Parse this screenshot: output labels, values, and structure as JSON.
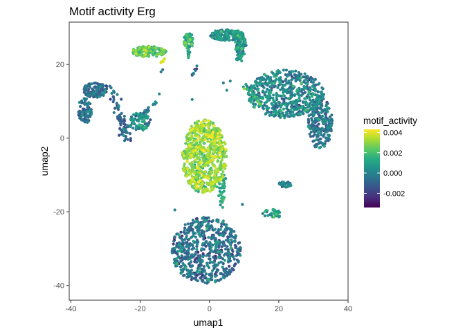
{
  "chart_data": {
    "type": "scatter",
    "title": "Motif activity Erg",
    "xlabel": "umap1",
    "ylabel": "umap2",
    "xlim": [
      -40.5,
      40
    ],
    "ylim": [
      -44,
      31.5
    ],
    "xticks": [
      -40,
      -20,
      0,
      20,
      40
    ],
    "yticks": [
      -40,
      -20,
      0,
      20
    ],
    "grid": false,
    "panel_border": true,
    "legend": {
      "title": "motif_activity",
      "position": "right",
      "colormap": "viridis",
      "range": [
        -0.0034,
        0.0043
      ],
      "ticks": [
        -0.002,
        0.0,
        0.002,
        0.004
      ],
      "tick_labels": [
        "-0.002",
        "0.000",
        "0.002",
        "0.004"
      ]
    },
    "clusters": [
      {
        "cx": -1.5,
        "cy": -5,
        "rx": 6.5,
        "ry": 10,
        "n": 700,
        "value_mean": 0.0028,
        "value_sd": 0.0007
      },
      {
        "cx": -1,
        "cy": -30.5,
        "rx": 10,
        "ry": 9,
        "n": 650,
        "value_mean": -0.0008,
        "value_sd": 0.0009
      },
      {
        "cx": 22,
        "cy": 12,
        "rx": 11,
        "ry": 6.5,
        "n": 550,
        "value_mean": 0.0,
        "value_sd": 0.0008
      },
      {
        "cx": 32,
        "cy": 4,
        "rx": 3.5,
        "ry": 7,
        "n": 220,
        "value_mean": -0.0006,
        "value_sd": 0.0008
      },
      {
        "cx": 5,
        "cy": 28,
        "rx": 5,
        "ry": 1.5,
        "n": 150,
        "value_mean": 0.0002,
        "value_sd": 0.0008
      },
      {
        "cx": 9,
        "cy": 25,
        "rx": 1.6,
        "ry": 3.5,
        "n": 70,
        "value_mean": 0.0002,
        "value_sd": 0.0008
      },
      {
        "cx": -6,
        "cy": 26.5,
        "rx": 1.5,
        "ry": 2,
        "n": 50,
        "value_mean": 0.0012,
        "value_sd": 0.0008
      },
      {
        "cx": -17.5,
        "cy": 23.5,
        "rx": 5,
        "ry": 1.5,
        "n": 130,
        "value_mean": 0.002,
        "value_sd": 0.0007
      },
      {
        "cx": -36,
        "cy": 7.5,
        "rx": 2,
        "ry": 3.5,
        "n": 90,
        "value_mean": -0.001,
        "value_sd": 0.0007
      },
      {
        "cx": -33,
        "cy": 13,
        "rx": 3.5,
        "ry": 2,
        "n": 120,
        "value_mean": -0.001,
        "value_sd": 0.0007
      },
      {
        "cx": -20,
        "cy": 4.5,
        "rx": 3,
        "ry": 2.5,
        "n": 80,
        "value_mean": 0.0002,
        "value_sd": 0.0008
      },
      {
        "cx": 22,
        "cy": -12.5,
        "rx": 2,
        "ry": 0.8,
        "n": 30,
        "value_mean": -0.0004,
        "value_sd": 0.0008
      },
      {
        "cx": 18,
        "cy": -20.5,
        "rx": 3,
        "ry": 1.2,
        "n": 40,
        "value_mean": 0.0008,
        "value_sd": 0.0008
      }
    ],
    "strands": [
      {
        "from": [
          -29,
          14
        ],
        "to": [
          -23,
          -1
        ],
        "spread": 1.2,
        "n": 60,
        "value_mean": -0.001,
        "value_sd": 0.0007
      },
      {
        "from": [
          -26,
          1
        ],
        "to": [
          -15,
          10
        ],
        "spread": 0.8,
        "n": 45,
        "value_mean": -0.0005,
        "value_sd": 0.0007
      },
      {
        "from": [
          4,
          -10
        ],
        "to": [
          3.5,
          -18
        ],
        "spread": 0.8,
        "n": 40,
        "value_mean": 0.001,
        "value_sd": 0.0007
      },
      {
        "from": [
          9,
          27
        ],
        "to": [
          8.5,
          21
        ],
        "spread": 0.8,
        "n": 35,
        "value_mean": 0.0003,
        "value_sd": 0.0008
      },
      {
        "from": [
          -6,
          22
        ],
        "to": [
          -6,
          25
        ],
        "spread": 0.6,
        "n": 15,
        "value_mean": 0.0008,
        "value_sd": 0.0008
      },
      {
        "from": [
          -5,
          17
        ],
        "to": [
          -3.5,
          19.5
        ],
        "spread": 0.4,
        "n": 8,
        "value_mean": -0.0005,
        "value_sd": 0.0008
      },
      {
        "from": [
          10,
          14
        ],
        "to": [
          15,
          9
        ],
        "spread": 0.8,
        "n": 30,
        "value_mean": 0.001,
        "value_sd": 0.0008
      },
      {
        "from": [
          -14,
          20
        ],
        "to": [
          -13,
          21.5
        ],
        "spread": 0.3,
        "n": 6,
        "value_mean": 0.0038,
        "value_sd": 0.0003
      }
    ],
    "singletons": [
      [
        -14,
        18
      ],
      [
        -13.5,
        18.6
      ],
      [
        4,
        15
      ],
      [
        6,
        15.5
      ],
      [
        5,
        13
      ],
      [
        -5,
        10.5
      ],
      [
        -14.5,
        12
      ],
      [
        4,
        -22.5
      ],
      [
        -10,
        -19.5
      ],
      [
        9.5,
        -18
      ],
      [
        4.5,
        -36
      ],
      [
        4,
        -29
      ]
    ],
    "seed": 7
  }
}
